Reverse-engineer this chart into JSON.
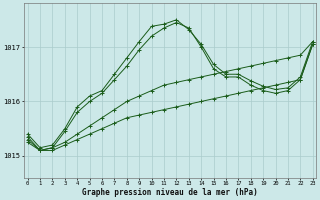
{
  "xlabel": "Graphe pression niveau de la mer (hPa)",
  "background_color": "#cce8e8",
  "grid_color": "#aacccc",
  "line_color": "#1a5c1a",
  "x_ticks": [
    0,
    1,
    2,
    3,
    4,
    5,
    6,
    7,
    8,
    9,
    10,
    11,
    12,
    13,
    14,
    15,
    16,
    17,
    18,
    19,
    20,
    21,
    22,
    23
  ],
  "ylim": [
    1014.6,
    1017.8
  ],
  "yticks": [
    1015,
    1016,
    1017
  ],
  "series": [
    [
      1015.25,
      1015.1,
      1015.1,
      1015.2,
      1015.3,
      1015.4,
      1015.5,
      1015.6,
      1015.7,
      1015.75,
      1015.8,
      1015.85,
      1015.9,
      1015.95,
      1016.0,
      1016.05,
      1016.1,
      1016.15,
      1016.2,
      1016.25,
      1016.3,
      1016.35,
      1016.4,
      1017.05
    ],
    [
      1015.3,
      1015.1,
      1015.15,
      1015.25,
      1015.4,
      1015.55,
      1015.7,
      1015.85,
      1016.0,
      1016.1,
      1016.2,
      1016.3,
      1016.35,
      1016.4,
      1016.45,
      1016.5,
      1016.55,
      1016.6,
      1016.65,
      1016.7,
      1016.75,
      1016.8,
      1016.85,
      1017.1
    ],
    [
      1015.35,
      1015.1,
      1015.15,
      1015.45,
      1015.8,
      1016.0,
      1016.15,
      1016.4,
      1016.65,
      1016.95,
      1017.2,
      1017.35,
      1017.45,
      1017.35,
      1017.0,
      1016.6,
      1016.45,
      1016.45,
      1016.3,
      1016.2,
      1016.15,
      1016.2,
      1016.4,
      1017.05
    ],
    [
      1015.4,
      1015.15,
      1015.2,
      1015.5,
      1015.9,
      1016.1,
      1016.2,
      1016.5,
      1016.8,
      1017.1,
      1017.38,
      1017.42,
      1017.5,
      1017.32,
      1017.05,
      1016.68,
      1016.5,
      1016.5,
      1016.38,
      1016.28,
      1016.22,
      1016.25,
      1016.45,
      1017.1
    ]
  ]
}
